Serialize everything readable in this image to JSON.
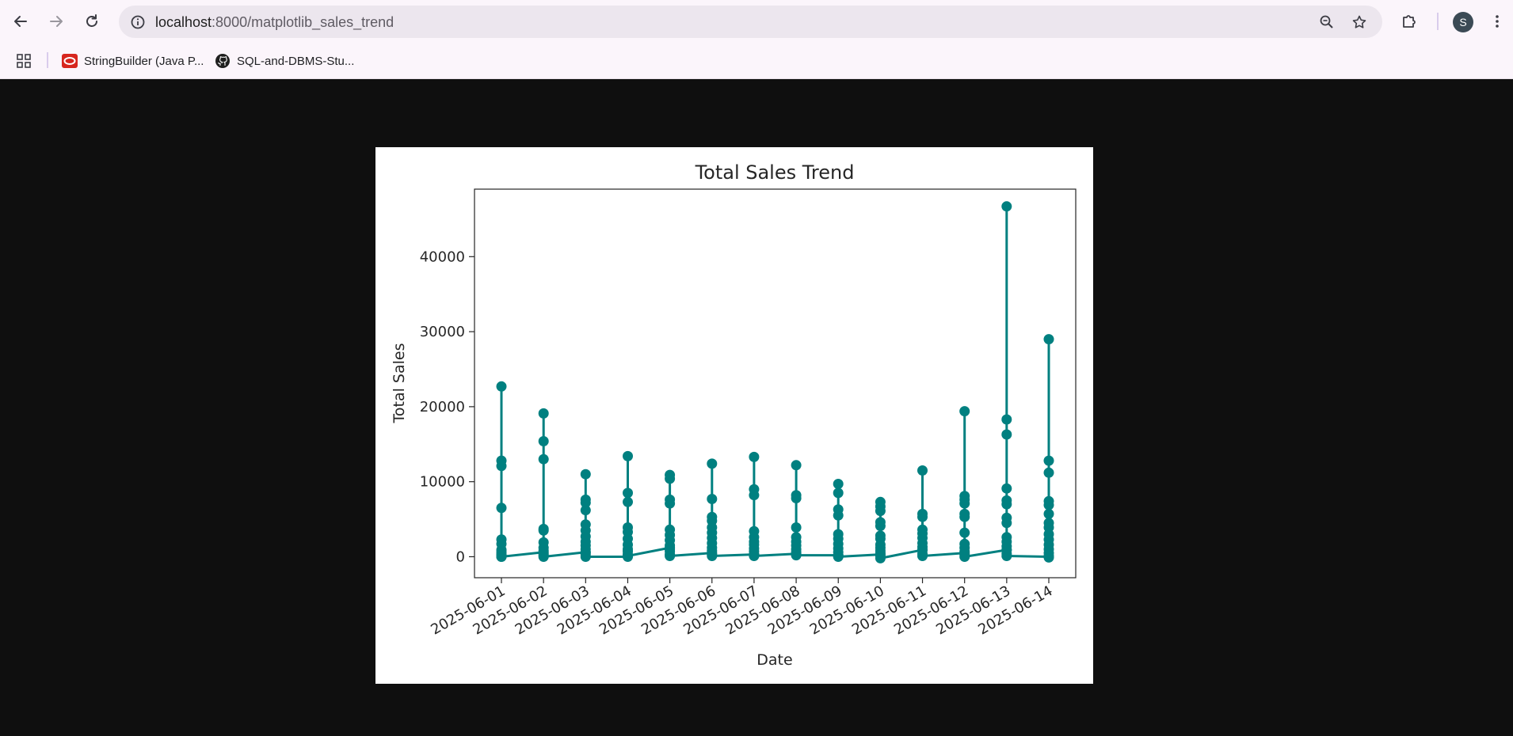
{
  "browser": {
    "url_host": "localhost",
    "url_rest": ":8000/matplotlib_sales_trend",
    "avatar_letter": "S",
    "bookmarks": [
      {
        "label": "StringBuilder (Java P...",
        "icon": "oracle-icon"
      },
      {
        "label": "SQL-and-DBMS-Stu...",
        "icon": "github-icon"
      }
    ]
  },
  "colors": {
    "series": "#008080",
    "page_background": "#0f0f0f",
    "figure_background": "#ffffff"
  },
  "chart_data": {
    "type": "line",
    "title": "Total Sales Trend",
    "xlabel": "Date",
    "ylabel": "Total Sales",
    "ylim": [
      -2800,
      49000
    ],
    "yticks": [
      0,
      10000,
      20000,
      30000,
      40000
    ],
    "grid": false,
    "legend": "none",
    "markers": "circle",
    "categories": [
      "2025-06-01",
      "2025-06-02",
      "2025-06-03",
      "2025-06-04",
      "2025-06-05",
      "2025-06-06",
      "2025-06-07",
      "2025-06-08",
      "2025-06-09",
      "2025-06-10",
      "2025-06-11",
      "2025-06-12",
      "2025-06-13",
      "2025-06-14"
    ],
    "points_per_date": [
      [
        100,
        22700,
        12800,
        12100,
        6500,
        2300,
        1700,
        900,
        600,
        300,
        200,
        100,
        0,
        0
      ],
      [
        600,
        19100,
        15400,
        13000,
        3700,
        3500,
        1900,
        1200,
        800,
        400,
        200,
        0
      ],
      [
        600,
        11000,
        7600,
        7200,
        6200,
        4300,
        3500,
        2700,
        2000,
        1500,
        1000,
        600,
        300,
        0
      ],
      [
        0,
        13400,
        8500,
        7300,
        3900,
        3300,
        2400,
        1600,
        1000,
        700,
        300,
        100
      ],
      [
        1200,
        10900,
        10400,
        7600,
        7100,
        3600,
        2900,
        2200,
        1500,
        1000,
        700,
        300,
        100
      ],
      [
        500,
        12400,
        7700,
        5300,
        4800,
        3900,
        3200,
        2500,
        1800,
        1200,
        800,
        300,
        100
      ],
      [
        300,
        13300,
        9000,
        8200,
        3400,
        2600,
        2000,
        1600,
        1100,
        700,
        300,
        100
      ],
      [
        400,
        12200,
        8200,
        7800,
        3900,
        2600,
        2000,
        1500,
        1000,
        600,
        200
      ],
      [
        200,
        9700,
        8500,
        6300,
        5500,
        3000,
        2400,
        1700,
        1100,
        600,
        200,
        0
      ],
      [
        300,
        7300,
        6700,
        6100,
        4600,
        4100,
        2800,
        2400,
        1600,
        1200,
        800,
        500,
        100,
        -200
      ],
      [
        900,
        11500,
        5700,
        5300,
        3600,
        3100,
        2500,
        1800,
        1300,
        900,
        400,
        100
      ],
      [
        500,
        19400,
        8100,
        7600,
        7100,
        5700,
        5300,
        3200,
        1700,
        1200,
        700,
        300,
        0
      ],
      [
        900,
        46700,
        18300,
        16300,
        9100,
        7500,
        7000,
        5200,
        4500,
        2600,
        2000,
        1400,
        900,
        400,
        100
      ],
      [
        0,
        29000,
        12800,
        11200,
        7400,
        6900,
        5700,
        4500,
        3900,
        3000,
        2300,
        1600,
        1000,
        500,
        100,
        -100
      ]
    ]
  }
}
